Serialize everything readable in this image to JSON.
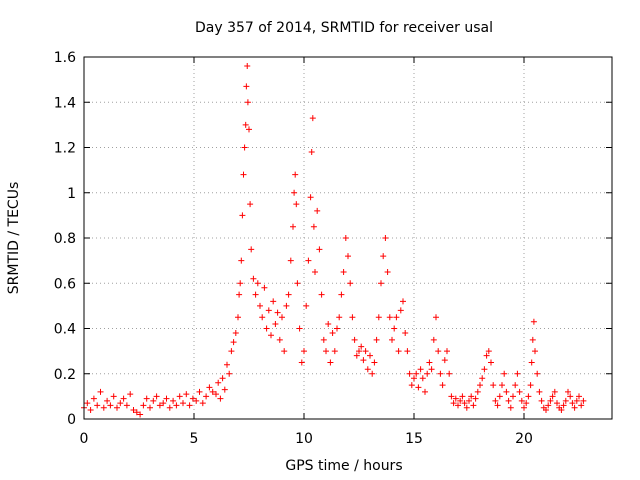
{
  "chart_data": {
    "type": "scatter",
    "title": "Day 357 of 2014, SRMTID for receiver usal",
    "xlabel": "GPS time / hours",
    "ylabel": "SRMTID / TECUs",
    "xlim": [
      0,
      24
    ],
    "ylim": [
      0,
      1.6
    ],
    "xticks": [
      0,
      5,
      10,
      15,
      20
    ],
    "xtick_labels": [
      "0",
      "5",
      "10",
      "15",
      "20"
    ],
    "yticks": [
      0,
      0.2,
      0.4,
      0.6,
      0.8,
      1.0,
      1.2,
      1.4,
      1.6
    ],
    "ytick_labels": [
      "0",
      "0.2",
      "0.4",
      "0.6",
      "0.8",
      "1",
      "1.2",
      "1.4",
      "1.6"
    ],
    "grid": true,
    "marker": "plus",
    "color": "#ff0000",
    "series": [
      {
        "name": "SRMTID",
        "points": [
          [
            0.0,
            0.05
          ],
          [
            0.15,
            0.07
          ],
          [
            0.3,
            0.04
          ],
          [
            0.45,
            0.09
          ],
          [
            0.6,
            0.06
          ],
          [
            0.75,
            0.12
          ],
          [
            0.9,
            0.05
          ],
          [
            1.05,
            0.08
          ],
          [
            1.2,
            0.06
          ],
          [
            1.35,
            0.1
          ],
          [
            1.5,
            0.05
          ],
          [
            1.65,
            0.07
          ],
          [
            1.8,
            0.09
          ],
          [
            1.95,
            0.06
          ],
          [
            2.1,
            0.11
          ],
          [
            2.25,
            0.04
          ],
          [
            2.4,
            0.03
          ],
          [
            2.55,
            0.02
          ],
          [
            2.7,
            0.06
          ],
          [
            2.85,
            0.09
          ],
          [
            3.0,
            0.05
          ],
          [
            3.15,
            0.08
          ],
          [
            3.3,
            0.1
          ],
          [
            3.45,
            0.06
          ],
          [
            3.6,
            0.07
          ],
          [
            3.75,
            0.09
          ],
          [
            3.9,
            0.05
          ],
          [
            4.05,
            0.08
          ],
          [
            4.2,
            0.06
          ],
          [
            4.35,
            0.1
          ],
          [
            4.5,
            0.07
          ],
          [
            4.65,
            0.11
          ],
          [
            4.8,
            0.06
          ],
          [
            4.95,
            0.09
          ],
          [
            5.1,
            0.08
          ],
          [
            5.25,
            0.12
          ],
          [
            5.4,
            0.07
          ],
          [
            5.55,
            0.1
          ],
          [
            5.7,
            0.14
          ],
          [
            5.85,
            0.12
          ],
          [
            6.0,
            0.11
          ],
          [
            6.1,
            0.16
          ],
          [
            6.2,
            0.09
          ],
          [
            6.3,
            0.18
          ],
          [
            6.4,
            0.13
          ],
          [
            6.5,
            0.24
          ],
          [
            6.6,
            0.2
          ],
          [
            6.7,
            0.3
          ],
          [
            6.8,
            0.34
          ],
          [
            6.9,
            0.38
          ],
          [
            7.0,
            0.45
          ],
          [
            7.05,
            0.55
          ],
          [
            7.1,
            0.6
          ],
          [
            7.15,
            0.7
          ],
          [
            7.2,
            0.9
          ],
          [
            7.25,
            1.08
          ],
          [
            7.3,
            1.2
          ],
          [
            7.35,
            1.3
          ],
          [
            7.38,
            1.47
          ],
          [
            7.42,
            1.56
          ],
          [
            7.45,
            1.4
          ],
          [
            7.5,
            1.28
          ],
          [
            7.55,
            0.95
          ],
          [
            7.6,
            0.75
          ],
          [
            7.7,
            0.62
          ],
          [
            7.8,
            0.55
          ],
          [
            7.9,
            0.6
          ],
          [
            8.0,
            0.5
          ],
          [
            8.1,
            0.45
          ],
          [
            8.2,
            0.58
          ],
          [
            8.3,
            0.4
          ],
          [
            8.4,
            0.48
          ],
          [
            8.5,
            0.37
          ],
          [
            8.6,
            0.52
          ],
          [
            8.7,
            0.42
          ],
          [
            8.8,
            0.47
          ],
          [
            8.9,
            0.35
          ],
          [
            9.0,
            0.45
          ],
          [
            9.1,
            0.3
          ],
          [
            9.2,
            0.5
          ],
          [
            9.3,
            0.55
          ],
          [
            9.4,
            0.7
          ],
          [
            9.5,
            0.85
          ],
          [
            9.55,
            1.0
          ],
          [
            9.6,
            1.08
          ],
          [
            9.65,
            0.95
          ],
          [
            9.7,
            0.6
          ],
          [
            9.8,
            0.4
          ],
          [
            9.9,
            0.25
          ],
          [
            10.0,
            0.3
          ],
          [
            10.1,
            0.5
          ],
          [
            10.2,
            0.7
          ],
          [
            10.3,
            0.98
          ],
          [
            10.35,
            1.18
          ],
          [
            10.4,
            1.33
          ],
          [
            10.45,
            0.85
          ],
          [
            10.5,
            0.65
          ],
          [
            10.6,
            0.92
          ],
          [
            10.7,
            0.75
          ],
          [
            10.8,
            0.55
          ],
          [
            10.9,
            0.35
          ],
          [
            11.0,
            0.3
          ],
          [
            11.1,
            0.42
          ],
          [
            11.2,
            0.25
          ],
          [
            11.3,
            0.38
          ],
          [
            11.4,
            0.3
          ],
          [
            11.5,
            0.4
          ],
          [
            11.6,
            0.45
          ],
          [
            11.7,
            0.55
          ],
          [
            11.8,
            0.65
          ],
          [
            11.9,
            0.8
          ],
          [
            12.0,
            0.72
          ],
          [
            12.1,
            0.6
          ],
          [
            12.2,
            0.45
          ],
          [
            12.3,
            0.35
          ],
          [
            12.4,
            0.28
          ],
          [
            12.5,
            0.3
          ],
          [
            12.6,
            0.32
          ],
          [
            12.7,
            0.26
          ],
          [
            12.8,
            0.3
          ],
          [
            12.9,
            0.22
          ],
          [
            13.0,
            0.28
          ],
          [
            13.1,
            0.2
          ],
          [
            13.2,
            0.25
          ],
          [
            13.3,
            0.35
          ],
          [
            13.4,
            0.45
          ],
          [
            13.5,
            0.6
          ],
          [
            13.6,
            0.72
          ],
          [
            13.7,
            0.8
          ],
          [
            13.8,
            0.65
          ],
          [
            13.9,
            0.45
          ],
          [
            14.0,
            0.35
          ],
          [
            14.1,
            0.4
          ],
          [
            14.2,
            0.45
          ],
          [
            14.3,
            0.3
          ],
          [
            14.4,
            0.48
          ],
          [
            14.5,
            0.52
          ],
          [
            14.6,
            0.38
          ],
          [
            14.7,
            0.3
          ],
          [
            14.8,
            0.2
          ],
          [
            14.9,
            0.15
          ],
          [
            15.0,
            0.18
          ],
          [
            15.1,
            0.2
          ],
          [
            15.2,
            0.14
          ],
          [
            15.3,
            0.22
          ],
          [
            15.4,
            0.18
          ],
          [
            15.5,
            0.12
          ],
          [
            15.6,
            0.2
          ],
          [
            15.7,
            0.25
          ],
          [
            15.8,
            0.22
          ],
          [
            15.9,
            0.35
          ],
          [
            16.0,
            0.45
          ],
          [
            16.1,
            0.3
          ],
          [
            16.2,
            0.2
          ],
          [
            16.3,
            0.15
          ],
          [
            16.4,
            0.26
          ],
          [
            16.5,
            0.3
          ],
          [
            16.6,
            0.2
          ],
          [
            16.7,
            0.1
          ],
          [
            16.8,
            0.07
          ],
          [
            16.9,
            0.09
          ],
          [
            17.0,
            0.06
          ],
          [
            17.1,
            0.08
          ],
          [
            17.2,
            0.1
          ],
          [
            17.3,
            0.07
          ],
          [
            17.4,
            0.05
          ],
          [
            17.5,
            0.08
          ],
          [
            17.6,
            0.1
          ],
          [
            17.7,
            0.06
          ],
          [
            17.8,
            0.09
          ],
          [
            17.9,
            0.12
          ],
          [
            18.0,
            0.15
          ],
          [
            18.1,
            0.18
          ],
          [
            18.2,
            0.22
          ],
          [
            18.3,
            0.28
          ],
          [
            18.4,
            0.3
          ],
          [
            18.5,
            0.25
          ],
          [
            18.6,
            0.15
          ],
          [
            18.7,
            0.08
          ],
          [
            18.8,
            0.06
          ],
          [
            18.9,
            0.1
          ],
          [
            19.0,
            0.15
          ],
          [
            19.1,
            0.2
          ],
          [
            19.2,
            0.12
          ],
          [
            19.3,
            0.08
          ],
          [
            19.4,
            0.05
          ],
          [
            19.5,
            0.1
          ],
          [
            19.6,
            0.15
          ],
          [
            19.7,
            0.2
          ],
          [
            19.8,
            0.12
          ],
          [
            19.9,
            0.08
          ],
          [
            20.0,
            0.05
          ],
          [
            20.1,
            0.07
          ],
          [
            20.2,
            0.1
          ],
          [
            20.3,
            0.15
          ],
          [
            20.35,
            0.25
          ],
          [
            20.4,
            0.35
          ],
          [
            20.45,
            0.43
          ],
          [
            20.5,
            0.3
          ],
          [
            20.6,
            0.2
          ],
          [
            20.7,
            0.12
          ],
          [
            20.8,
            0.08
          ],
          [
            20.9,
            0.05
          ],
          [
            21.0,
            0.04
          ],
          [
            21.1,
            0.06
          ],
          [
            21.2,
            0.08
          ],
          [
            21.3,
            0.1
          ],
          [
            21.4,
            0.12
          ],
          [
            21.5,
            0.07
          ],
          [
            21.6,
            0.05
          ],
          [
            21.7,
            0.04
          ],
          [
            21.8,
            0.06
          ],
          [
            21.9,
            0.08
          ],
          [
            22.0,
            0.12
          ],
          [
            22.1,
            0.1
          ],
          [
            22.2,
            0.07
          ],
          [
            22.3,
            0.05
          ],
          [
            22.4,
            0.08
          ],
          [
            22.5,
            0.1
          ],
          [
            22.6,
            0.06
          ],
          [
            22.7,
            0.08
          ]
        ]
      }
    ]
  }
}
